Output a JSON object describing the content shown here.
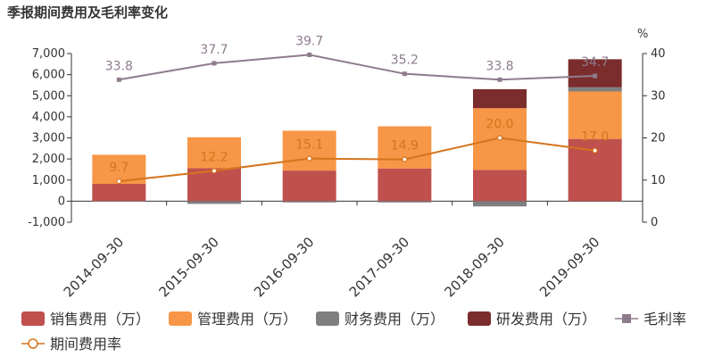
{
  "chart_data": {
    "type": "bar",
    "title": "季报期间费用及毛利率变化",
    "categories": [
      "2014-09-30",
      "2015-09-30",
      "2016-09-30",
      "2017-09-30",
      "2018-09-30",
      "2019-09-30"
    ],
    "y_left": {
      "min": -1000,
      "max": 7000,
      "ticks": [
        "-1,000",
        "0",
        "1,000",
        "2,000",
        "3,000",
        "4,000",
        "5,000",
        "6,000",
        "7,000"
      ]
    },
    "y_right": {
      "label": "%",
      "min": 0,
      "max": 40,
      "ticks": [
        "0",
        "10",
        "20",
        "30",
        "40"
      ]
    },
    "grid": false,
    "legend_position": "bottom",
    "bar_series": [
      {
        "name": "销售费用（万）",
        "color": "#c0504d",
        "values": [
          820,
          1560,
          1450,
          1550,
          1480,
          2950
        ]
      },
      {
        "name": "管理费用（万）",
        "color": "#f79646",
        "values": [
          1380,
          1470,
          1890,
          2000,
          2930,
          2250
        ]
      },
      {
        "name": "财务费用（万）",
        "color": "#7f7f7f",
        "values": [
          -20,
          -130,
          -60,
          -60,
          -250,
          200
        ]
      },
      {
        "name": "研发费用（万）",
        "color": "#7b2c2c",
        "values": [
          0,
          0,
          0,
          0,
          900,
          1330
        ]
      }
    ],
    "line_series": [
      {
        "name": "毛利率",
        "color": "#8e7b8e",
        "values": [
          33.8,
          37.7,
          39.7,
          35.2,
          33.8,
          34.7
        ],
        "labels": [
          "33.8",
          "37.7",
          "39.7",
          "35.2",
          "33.8",
          "34.7"
        ]
      },
      {
        "name": "期间费用率",
        "color": "#d4741c",
        "values": [
          9.7,
          12.2,
          15.1,
          14.9,
          20.0,
          17.0
        ],
        "labels": [
          "9.7",
          "12.2",
          "15.1",
          "14.9",
          "20.0",
          "17.0"
        ]
      }
    ]
  }
}
